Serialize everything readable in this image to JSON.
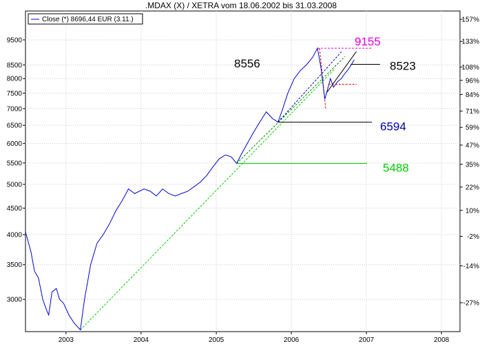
{
  "chart_data": {
    "type": "line",
    "title": ".MDAX (X) / XETRA vom 18.06.2002  bis 31.03.2008",
    "legend": "Close (*) 8696,44 EUR (3.11.)",
    "colors": {
      "price": "#0000cc",
      "green": "#00cc00",
      "magenta": "#dd00dd",
      "dark_blue": "#0000aa",
      "black": "#000000",
      "red": "#dd0000"
    },
    "x_ticks": [
      "2003",
      "2004",
      "2005",
      "2006",
      "2007",
      "2008"
    ],
    "y_left_ticks": [
      3000,
      3500,
      4000,
      4500,
      5000,
      5500,
      6000,
      6500,
      7000,
      7500,
      8000,
      8500,
      9500
    ],
    "y_left_tick_labels": [
      "3000",
      "3500",
      "4000",
      "4500",
      "5000",
      "5500",
      "6000",
      "6500",
      "7000",
      "7500",
      "8000",
      "8500",
      "9500"
    ],
    "y_right_ticks": [
      157,
      133,
      108,
      96,
      84,
      71,
      59,
      47,
      35,
      22,
      10,
      -2,
      -14,
      -27
    ],
    "y_right_tick_labels": [
      "157%",
      "133%",
      "108%",
      "96%",
      "84%",
      "71%",
      "59%",
      "47%",
      "35%",
      "22%",
      "10%",
      "-2%",
      "-14%",
      "-27%"
    ],
    "y_scale": "log",
    "ylim": [
      2600,
      10800
    ],
    "xlim": [
      "2002-06-18",
      "2008-03-31"
    ],
    "grid": true,
    "series": [
      {
        "name": "Close (*) 8696,44 EUR (3.11.)",
        "x": [
          "2002-06-18",
          "2002-07-15",
          "2002-08-01",
          "2002-08-20",
          "2002-09-10",
          "2002-09-30",
          "2002-10-09",
          "2002-10-25",
          "2002-11-15",
          "2002-12-01",
          "2002-12-20",
          "2003-01-15",
          "2003-02-10",
          "2003-03-12",
          "2003-04-01",
          "2003-05-01",
          "2003-06-01",
          "2003-07-01",
          "2003-08-01",
          "2003-09-01",
          "2003-10-01",
          "2003-11-01",
          "2003-12-01",
          "2004-01-15",
          "2004-02-15",
          "2004-03-15",
          "2004-04-15",
          "2004-05-15",
          "2004-06-15",
          "2004-07-15",
          "2004-08-15",
          "2004-09-15",
          "2004-10-15",
          "2004-11-15",
          "2004-12-15",
          "2005-01-15",
          "2005-02-15",
          "2005-03-15",
          "2005-04-10",
          "2005-05-01",
          "2005-06-01",
          "2005-07-01",
          "2005-08-01",
          "2005-09-01",
          "2005-10-01",
          "2005-10-28",
          "2005-11-15",
          "2005-12-15",
          "2006-01-15",
          "2006-02-15",
          "2006-03-15",
          "2006-04-15",
          "2006-05-08",
          "2006-05-25",
          "2006-06-13",
          "2006-06-25",
          "2006-07-10",
          "2006-07-25",
          "2006-08-15",
          "2006-09-01",
          "2006-09-15",
          "2006-10-01",
          "2006-10-15",
          "2006-11-03"
        ],
        "values": [
          4050,
          3700,
          3400,
          3300,
          3000,
          2850,
          2800,
          3100,
          3150,
          3000,
          2950,
          2800,
          2700,
          2620,
          3000,
          3500,
          3850,
          4000,
          4200,
          4450,
          4650,
          4900,
          4800,
          4900,
          4850,
          4750,
          4900,
          4800,
          4750,
          4800,
          4850,
          4950,
          5050,
          5200,
          5400,
          5600,
          5700,
          5650,
          5488,
          5700,
          6000,
          6300,
          6600,
          6900,
          6700,
          6594,
          6900,
          7500,
          8000,
          8300,
          8500,
          8800,
          9155,
          8400,
          7300,
          7600,
          8000,
          7700,
          7900,
          8000,
          8150,
          8300,
          8450,
          8696
        ]
      }
    ],
    "annotations": [
      {
        "label": "9155",
        "value": 9155,
        "color": "#dd00dd"
      },
      {
        "label": "8556",
        "value": 8556,
        "color": "#000000"
      },
      {
        "label": "8523",
        "value": 8523,
        "color": "#000000"
      },
      {
        "label": "6594",
        "value": 6594,
        "color": "#0000aa"
      },
      {
        "label": "5488",
        "value": 5488,
        "color": "#00cc00"
      }
    ]
  }
}
